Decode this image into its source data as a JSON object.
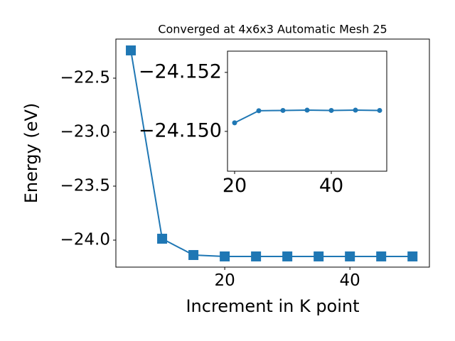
{
  "chart_data": [
    {
      "type": "line",
      "title": "Converged at 4x6x3 Automatic Mesh 25",
      "xlabel": "Increment in K point",
      "ylabel": "Energy (eV)",
      "x": [
        5,
        10,
        15,
        20,
        25,
        30,
        35,
        40,
        45,
        50
      ],
      "values": [
        -22.243,
        -23.987,
        -24.138,
        -24.151,
        -24.151,
        -24.151,
        -24.151,
        -24.151,
        -24.151,
        -24.151
      ],
      "color": "#1f77b4",
      "marker": "square",
      "xlim": [
        2.61,
        52.7
      ],
      "ylim": [
        -24.25,
        -22.138
      ],
      "xticks": [
        20,
        40
      ],
      "yticks": [
        {
          "value": -24.0,
          "label": "−24.0"
        },
        {
          "value": -23.5,
          "label": "−23.5"
        },
        {
          "value": -23.0,
          "label": "−23.0"
        },
        {
          "value": -22.5,
          "label": "−22.5"
        }
      ]
    },
    {
      "type": "line",
      "x": [
        20,
        25,
        30,
        35,
        40,
        45,
        50
      ],
      "values": [
        -24.15029,
        -24.1507,
        -24.15071,
        -24.15072,
        -24.15071,
        -24.15072,
        -24.15071
      ],
      "color": "#1f77b4",
      "marker": "circle",
      "xlim": [
        18.53,
        51.47
      ],
      "ylim": [
        -24.14865,
        -24.15272
      ],
      "xticks": [
        20,
        40
      ],
      "yticks": [
        {
          "value": -24.15,
          "label": "−24.150"
        },
        {
          "value": -24.152,
          "label": "−24.152"
        }
      ]
    }
  ]
}
